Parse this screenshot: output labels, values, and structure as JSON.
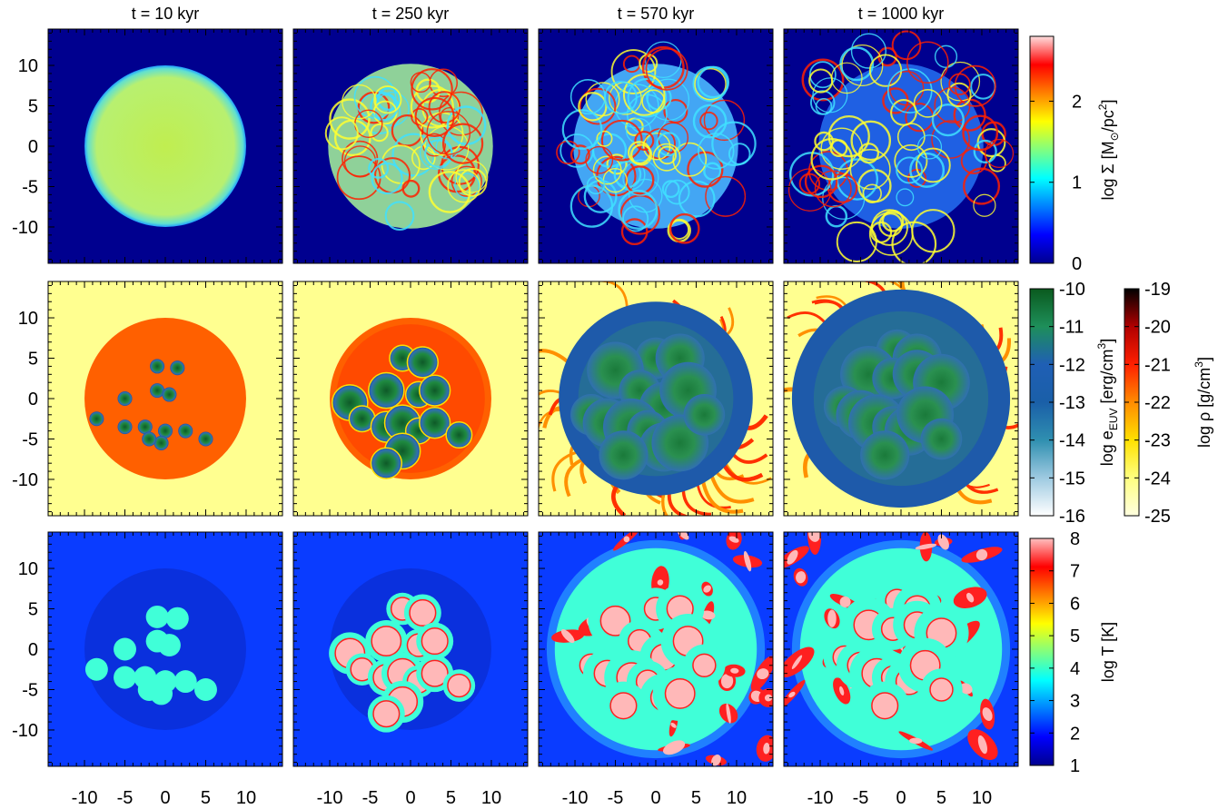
{
  "times": [
    "t = 10 kyr",
    "t = 250 kyr",
    "t = 570 kyr",
    "t = 1000 kyr"
  ],
  "axis_ticks": [
    "-10",
    "-5",
    "0",
    "5",
    "10"
  ],
  "axis_tick_values": [
    -10,
    -5,
    0,
    5,
    10
  ],
  "axis_range": [
    -14.5,
    14.5
  ],
  "rows": [
    {
      "name": "surface-density"
    },
    {
      "name": "euv-energy-and-density"
    },
    {
      "name": "temperature"
    }
  ],
  "colorbars": {
    "sigma": {
      "label_pre": "log Σ [M",
      "label_sun": "⊙",
      "label_mid": "/pc",
      "label_sup": "2",
      "label_post": "]",
      "ticks": [
        "2",
        "1",
        "0"
      ],
      "tick_values": [
        2,
        1,
        0
      ],
      "range": [
        0,
        2.8
      ],
      "colors": [
        "#00008f",
        "#0000ff",
        "#0080ff",
        "#00ffff",
        "#80ff80",
        "#ffff00",
        "#ff8000",
        "#ff0000",
        "#ffdede"
      ]
    },
    "euv": {
      "label_pre": "log e",
      "label_sub": "EUV",
      "label_mid": " [erg/cm",
      "label_sup": "3",
      "label_post": "]",
      "ticks": [
        "-10",
        "-11",
        "-12",
        "-13",
        "-14",
        "-15",
        "-16"
      ],
      "tick_values": [
        -10,
        -11,
        -12,
        -13,
        -14,
        -15,
        -16
      ],
      "range": [
        -16,
        -10
      ],
      "colors": [
        "#ffffff",
        "#9ecae1",
        "#2f8fb0",
        "#1a5fa8",
        "#1f5fb5",
        "#1e8f5a",
        "#0a5a1e"
      ]
    },
    "rho": {
      "label_pre": "log ρ [g/cm",
      "label_sup": "3",
      "label_post": "]",
      "ticks": [
        "-19",
        "-20",
        "-21",
        "-22",
        "-23",
        "-24",
        "-25"
      ],
      "tick_values": [
        -19,
        -20,
        -21,
        -22,
        -23,
        -24,
        -25
      ],
      "range": [
        -25,
        -19
      ],
      "colors": [
        "#ffffe0",
        "#ffff80",
        "#ffe000",
        "#ff8c00",
        "#ff2000",
        "#b00000",
        "#000000"
      ]
    },
    "temp": {
      "label": "log T [K]",
      "ticks": [
        "8",
        "7",
        "6",
        "5",
        "4",
        "3",
        "2",
        "1"
      ],
      "tick_values": [
        8,
        7,
        6,
        5,
        4,
        3,
        2,
        1
      ],
      "range": [
        1,
        8
      ],
      "colors": [
        "#00008f",
        "#0000ff",
        "#0080ff",
        "#00ffff",
        "#80ff80",
        "#ffff00",
        "#ff8000",
        "#ff0000",
        "#ffc0c0"
      ]
    }
  },
  "palette": {
    "bg_blue": "#00008f",
    "disk_yellowgreen": "#c8f05a",
    "disk_green": "#a8e860",
    "filament_red": "#ff2000",
    "cyan": "#40e0ff",
    "pale_yellow": "#ffff90",
    "orange": "#ff6000",
    "ion_green": "#1a8a3a",
    "ion_blue": "#2f6fb0",
    "temp_bg": "#0a3cff",
    "temp_cyan": "#40ffd8",
    "temp_pink": "#ffb8b8",
    "temp_red": "#ff2020"
  }
}
